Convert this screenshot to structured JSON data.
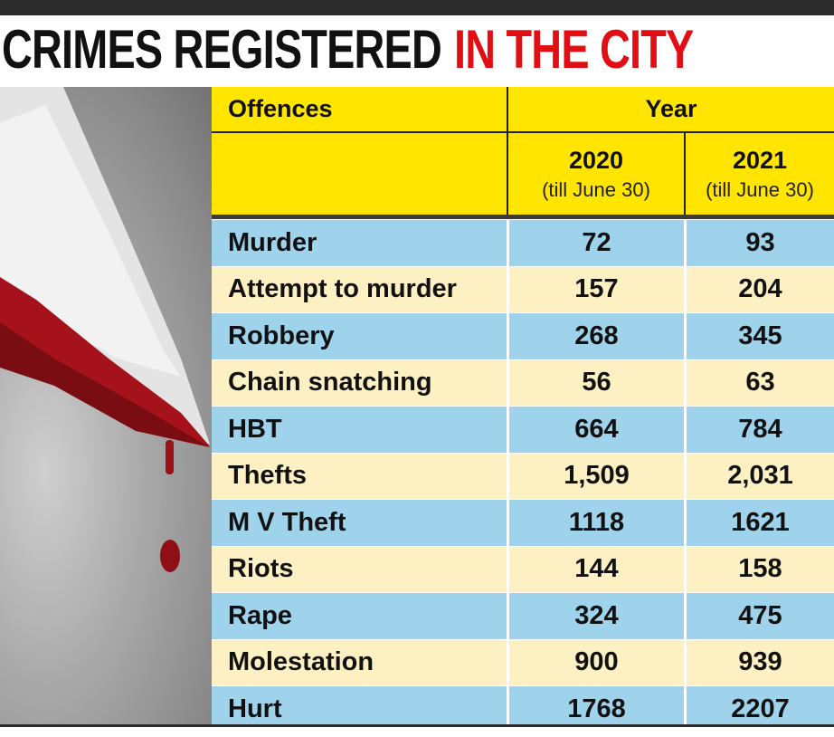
{
  "headline": {
    "part1": "CRIMES REGISTERED",
    "part2": "IN THE CITY"
  },
  "colors": {
    "headline_black": "#111111",
    "headline_red": "#e10f14",
    "header_yellow": "#ffe500",
    "row_blue": "#9fd3ec",
    "row_cream": "#fdf1c4"
  },
  "image": {
    "subject": "blood-stained-knife"
  },
  "chart_data": {
    "type": "table",
    "columns": {
      "offences_header": "Offences",
      "year_header": "Year",
      "years": [
        {
          "year": "2020",
          "note": "(till June 30)"
        },
        {
          "year": "2021",
          "note": "(till June 30)"
        }
      ]
    },
    "rows": [
      {
        "offence": "Murder",
        "v2020": "72",
        "v2021": "93"
      },
      {
        "offence": "Attempt to murder",
        "v2020": "157",
        "v2021": "204"
      },
      {
        "offence": "Robbery",
        "v2020": "268",
        "v2021": "345"
      },
      {
        "offence": "Chain snatching",
        "v2020": "56",
        "v2021": "63"
      },
      {
        "offence": "HBT",
        "v2020": "664",
        "v2021": "784"
      },
      {
        "offence": "Thefts",
        "v2020": "1,509",
        "v2021": "2,031"
      },
      {
        "offence": "M V Theft",
        "v2020": "1118",
        "v2021": "1621"
      },
      {
        "offence": "Riots",
        "v2020": "144",
        "v2021": "158"
      },
      {
        "offence": "Rape",
        "v2020": "324",
        "v2021": "475"
      },
      {
        "offence": "Molestation",
        "v2020": "900",
        "v2021": "939"
      },
      {
        "offence": "Hurt",
        "v2020": "1768",
        "v2021": "2207"
      }
    ]
  }
}
